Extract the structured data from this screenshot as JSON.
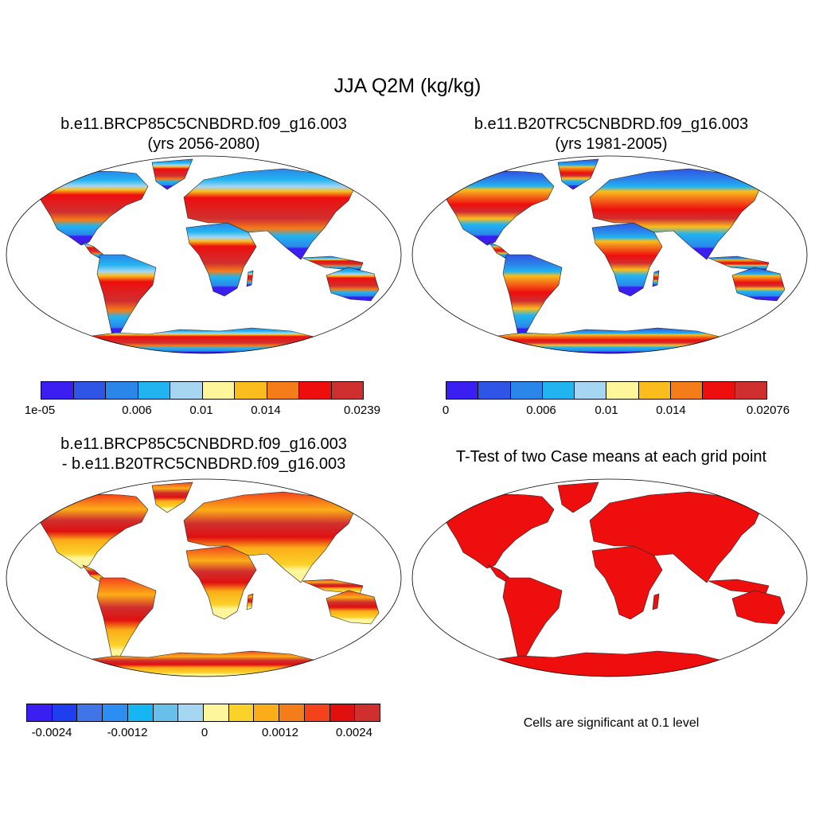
{
  "figure": {
    "title": "JJA Q2M (kg/kg)",
    "note": "Cells are significant at 0.1 level"
  },
  "panels": [
    {
      "title_line1": "b.e11.BRCP85C5CNBDRD.f09_g16.003",
      "title_line2": "(yrs 2056-2080)",
      "colorbar": {
        "colors": [
          "#3a1ef2",
          "#2f55e6",
          "#2b86ea",
          "#21b4f0",
          "#a6d6f2",
          "#fff59a",
          "#fbbd1e",
          "#f47d1a",
          "#ef0e0e",
          "#d02f2f"
        ],
        "tick_labels": [
          "1e-05",
          "0.006",
          "0.01",
          "0.014",
          "0.0239"
        ]
      }
    },
    {
      "title_line1": "b.e11.B20TRC5CNBDRD.f09_g16.003",
      "title_line2": "(yrs 1981-2005)",
      "colorbar": {
        "colors": [
          "#3a1ef2",
          "#2f55e6",
          "#2b86ea",
          "#21b4f0",
          "#a6d6f2",
          "#fff59a",
          "#fbbd1e",
          "#f47d1a",
          "#ef0e0e",
          "#d02f2f"
        ],
        "tick_labels": [
          "0",
          "0.006",
          "0.01",
          "0.014",
          "0.02076"
        ]
      }
    },
    {
      "title_line1": "b.e11.BRCP85C5CNBDRD.f09_g16.003",
      "title_line2": "- b.e11.B20TRC5CNBDRD.f09_g16.003",
      "colorbar": {
        "colors": [
          "#3a1ef2",
          "#1f3ef0",
          "#3f75e6",
          "#2b8ef2",
          "#16b6f2",
          "#66c0ea",
          "#a6d6f2",
          "#fff59a",
          "#fbd22a",
          "#fbad18",
          "#f47d1a",
          "#f4421a",
          "#e01010",
          "#d02f2f"
        ],
        "tick_labels": [
          "-0.0024",
          "-0.0012",
          "0",
          "0.0012",
          "0.0024"
        ]
      }
    },
    {
      "title_line1": "T-Test of two Case means at each grid point",
      "title_line2": ""
    }
  ]
}
